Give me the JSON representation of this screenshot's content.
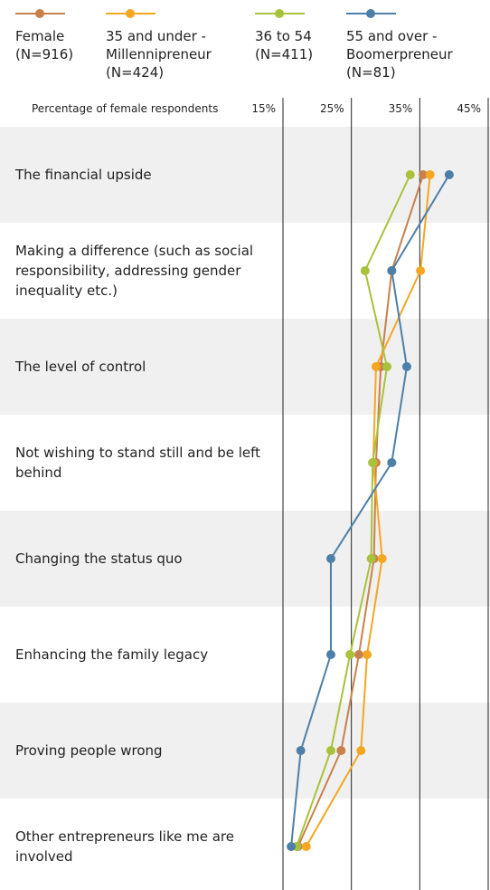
{
  "chart_data": {
    "type": "line",
    "xlabel": "Percentage of female respondents",
    "categories": [
      "The financial upside",
      "Making a difference (such as social responsibility, addressing gender inequality etc.)",
      "The level of control",
      "Not wishing to stand still and be left behind",
      "Changing the status quo",
      "Enhancing the family legacy",
      "Proving people wrong",
      "Other entrepreneurs like me are involved"
    ],
    "xlim": [
      15,
      45
    ],
    "xticks": [
      {
        "value": 15,
        "label": "15%"
      },
      {
        "value": 25,
        "label": "25%"
      },
      {
        "value": 35,
        "label": "35%"
      },
      {
        "value": 45,
        "label": "45%"
      }
    ],
    "grid": true,
    "series": [
      {
        "name": "Female (N=916)",
        "color": "#c8814b",
        "values": [
          35.5,
          30.9,
          29.3,
          28.6,
          28.3,
          26.1,
          23.5,
          17.2
        ]
      },
      {
        "name": "35 and under - Millennipreneur (N=424)",
        "color": "#f5a623",
        "values": [
          36.5,
          35.1,
          28.6,
          28.2,
          29.5,
          27.3,
          26.4,
          18.4
        ]
      },
      {
        "name": "36 to 54 (N=411)",
        "color": "#a9c23c",
        "values": [
          33.6,
          27.0,
          30.2,
          28.1,
          27.9,
          24.8,
          22.0,
          17.0
        ]
      },
      {
        "name": "55 and over - Boomerpreneur (N=81)",
        "color": "#4d80a8",
        "values": [
          39.3,
          30.9,
          33.1,
          30.9,
          22.0,
          22.0,
          17.6,
          16.2
        ]
      }
    ]
  }
}
